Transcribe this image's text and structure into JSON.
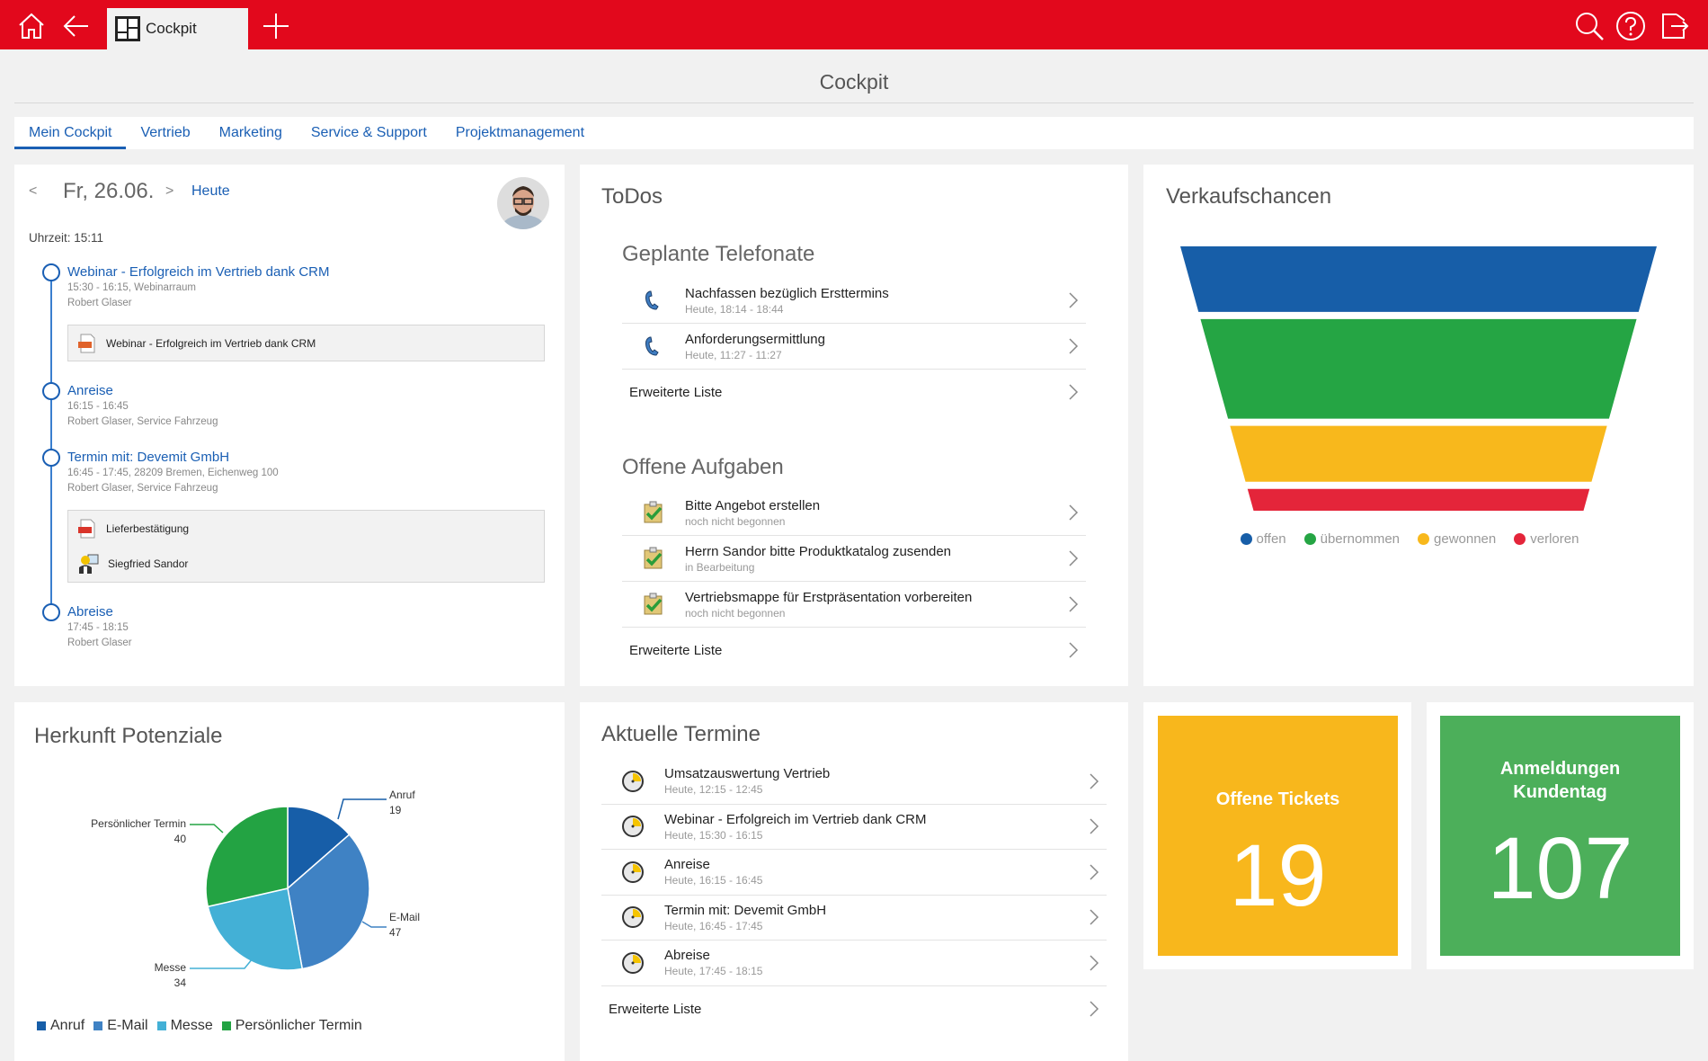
{
  "topbar": {
    "tab_label": "Cockpit",
    "icons": [
      "home-icon",
      "back-arrow-icon",
      "cockpit-grid-icon",
      "plus-icon",
      "search-icon",
      "help-icon",
      "logout-icon"
    ],
    "color": "#e2081c"
  },
  "page": {
    "title": "Cockpit"
  },
  "tabs": [
    {
      "label": "Mein Cockpit",
      "active": true
    },
    {
      "label": "Vertrieb"
    },
    {
      "label": "Marketing"
    },
    {
      "label": "Service & Support"
    },
    {
      "label": "Projektmanagement"
    }
  ],
  "calendar": {
    "prev": "<",
    "date": "Fr, 26.06.",
    "next": ">",
    "today": "Heute",
    "time": "Uhrzeit: 15:11",
    "events": [
      {
        "title": "Webinar - Erfolgreich im Vertrieb dank CRM",
        "line1": "15:30 - 16:15, Webinarraum",
        "line2": "Robert Glaser",
        "attachments": [
          {
            "type": "ppt",
            "label": "Webinar - Erfolgreich im Vertrieb dank CRM"
          }
        ]
      },
      {
        "title": "Anreise",
        "line1": "16:15 - 16:45",
        "line2": "Robert Glaser,  Service Fahrzeug"
      },
      {
        "title": "Termin mit: Devemit GmbH",
        "line1": "16:45 - 17:45, 28209 Bremen, Eichenweg 100",
        "line2": "Robert Glaser,  Service Fahrzeug",
        "attachments": [
          {
            "type": "pdf",
            "label": "Lieferbestätigung"
          },
          {
            "type": "contact",
            "label": "Siegfried Sandor"
          }
        ]
      },
      {
        "title": "Abreise",
        "line1": "17:45 - 18:15",
        "line2": "Robert Glaser"
      }
    ]
  },
  "todos": {
    "title": "ToDos",
    "calls": {
      "title": "Geplante Telefonate",
      "items": [
        {
          "title": "Nachfassen bezüglich Ersttermins",
          "sub": "Heute, 18:14 - 18:44"
        },
        {
          "title": "Anforderungsermittlung",
          "sub": "Heute, 11:27 - 11:27"
        }
      ],
      "more": "Erweiterte Liste"
    },
    "tasks": {
      "title": "Offene Aufgaben",
      "items": [
        {
          "title": "Bitte Angebot erstellen",
          "sub": "noch nicht begonnen"
        },
        {
          "title": "Herrn Sandor bitte Produktkatalog zusenden",
          "sub": "in Bearbeitung"
        },
        {
          "title": "Vertriebsmappe für Erstpräsentation vorbereiten",
          "sub": "noch nicht begonnen"
        }
      ],
      "more": "Erweiterte Liste"
    }
  },
  "appointments": {
    "title": "Aktuelle Termine",
    "items": [
      {
        "title": "Umsatzauswertung Vertrieb",
        "sub": "Heute, 12:15 - 12:45"
      },
      {
        "title": "Webinar - Erfolgreich im Vertrieb dank CRM",
        "sub": "Heute, 15:30 - 16:15"
      },
      {
        "title": "Anreise",
        "sub": "Heute, 16:15 - 16:45"
      },
      {
        "title": "Termin mit: Devemit GmbH",
        "sub": "Heute, 16:45 - 17:45"
      },
      {
        "title": "Abreise",
        "sub": "Heute, 17:45 - 18:15"
      }
    ],
    "more": "Erweiterte Liste"
  },
  "tiles": [
    {
      "label_lines": [
        "Offene Tickets"
      ],
      "value": "19",
      "color": "#f8b71c"
    },
    {
      "label_lines": [
        "Anmeldungen",
        "Kundentag"
      ],
      "value": "107",
      "color": "#4caf5a"
    }
  ],
  "chart_data": [
    {
      "type": "funnel",
      "title": "Verkaufschancen",
      "categories": [
        "offen",
        "übernommen",
        "gewonnen",
        "verloren"
      ],
      "relative_share_pct_estimated": [
        27,
        41,
        23,
        9
      ],
      "colors": [
        "#175ea8",
        "#25a544",
        "#f8b81c",
        "#e4253a"
      ],
      "legend": "bottom"
    },
    {
      "type": "pie",
      "title": "Herkunft Potenziale",
      "categories": [
        "Anruf",
        "E-Mail",
        "Messe",
        "Persönlicher Termin"
      ],
      "values": [
        19,
        47,
        34,
        40
      ],
      "colors": [
        "#175ea8",
        "#3f82c4",
        "#43b0d6",
        "#23a343"
      ],
      "legend": "bottom-left"
    }
  ]
}
